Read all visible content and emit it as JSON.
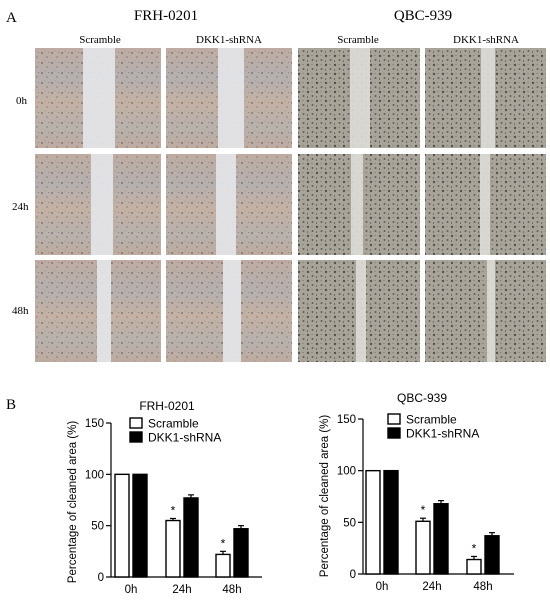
{
  "panel_a": {
    "label": "A",
    "groups": [
      {
        "title": "FRH-0201",
        "columns": [
          "Scramble",
          "DKK1-shRNA"
        ]
      },
      {
        "title": "QBC-939",
        "columns": [
          "Scramble",
          "DKK1-shRNA"
        ]
      }
    ],
    "rows": [
      "0h",
      "24h",
      "48h"
    ]
  },
  "panel_b": {
    "label": "B"
  },
  "chart_data": [
    {
      "type": "bar",
      "title": "FRH-0201",
      "ylabel": "Percentage of cleaned area (%)",
      "categories": [
        "0h",
        "24h",
        "48h"
      ],
      "ylim": [
        0,
        150
      ],
      "yticks": [
        0,
        50,
        100,
        150
      ],
      "legend": "top-right",
      "series": [
        {
          "name": "Scramble",
          "values": [
            100,
            55,
            22
          ],
          "errors": [
            0,
            2,
            3
          ],
          "fill": "#ffffff"
        },
        {
          "name": "DKK1-shRNA",
          "values": [
            100,
            77,
            47
          ],
          "errors": [
            0,
            3,
            3
          ],
          "fill": "#000000"
        }
      ],
      "significance": [
        "",
        "*",
        "*"
      ]
    },
    {
      "type": "bar",
      "title": "QBC-939",
      "ylabel": "Percentage of cleaned area (%)",
      "categories": [
        "0h",
        "24h",
        "48h"
      ],
      "ylim": [
        0,
        150
      ],
      "yticks": [
        0,
        50,
        100,
        150
      ],
      "legend": "top-right",
      "series": [
        {
          "name": "Scramble",
          "values": [
            100,
            51,
            14
          ],
          "errors": [
            0,
            3,
            3
          ],
          "fill": "#ffffff"
        },
        {
          "name": "DKK1-shRNA",
          "values": [
            100,
            68,
            37
          ],
          "errors": [
            0,
            3,
            3
          ],
          "fill": "#000000"
        }
      ],
      "significance": [
        "",
        "*",
        "*"
      ]
    }
  ]
}
